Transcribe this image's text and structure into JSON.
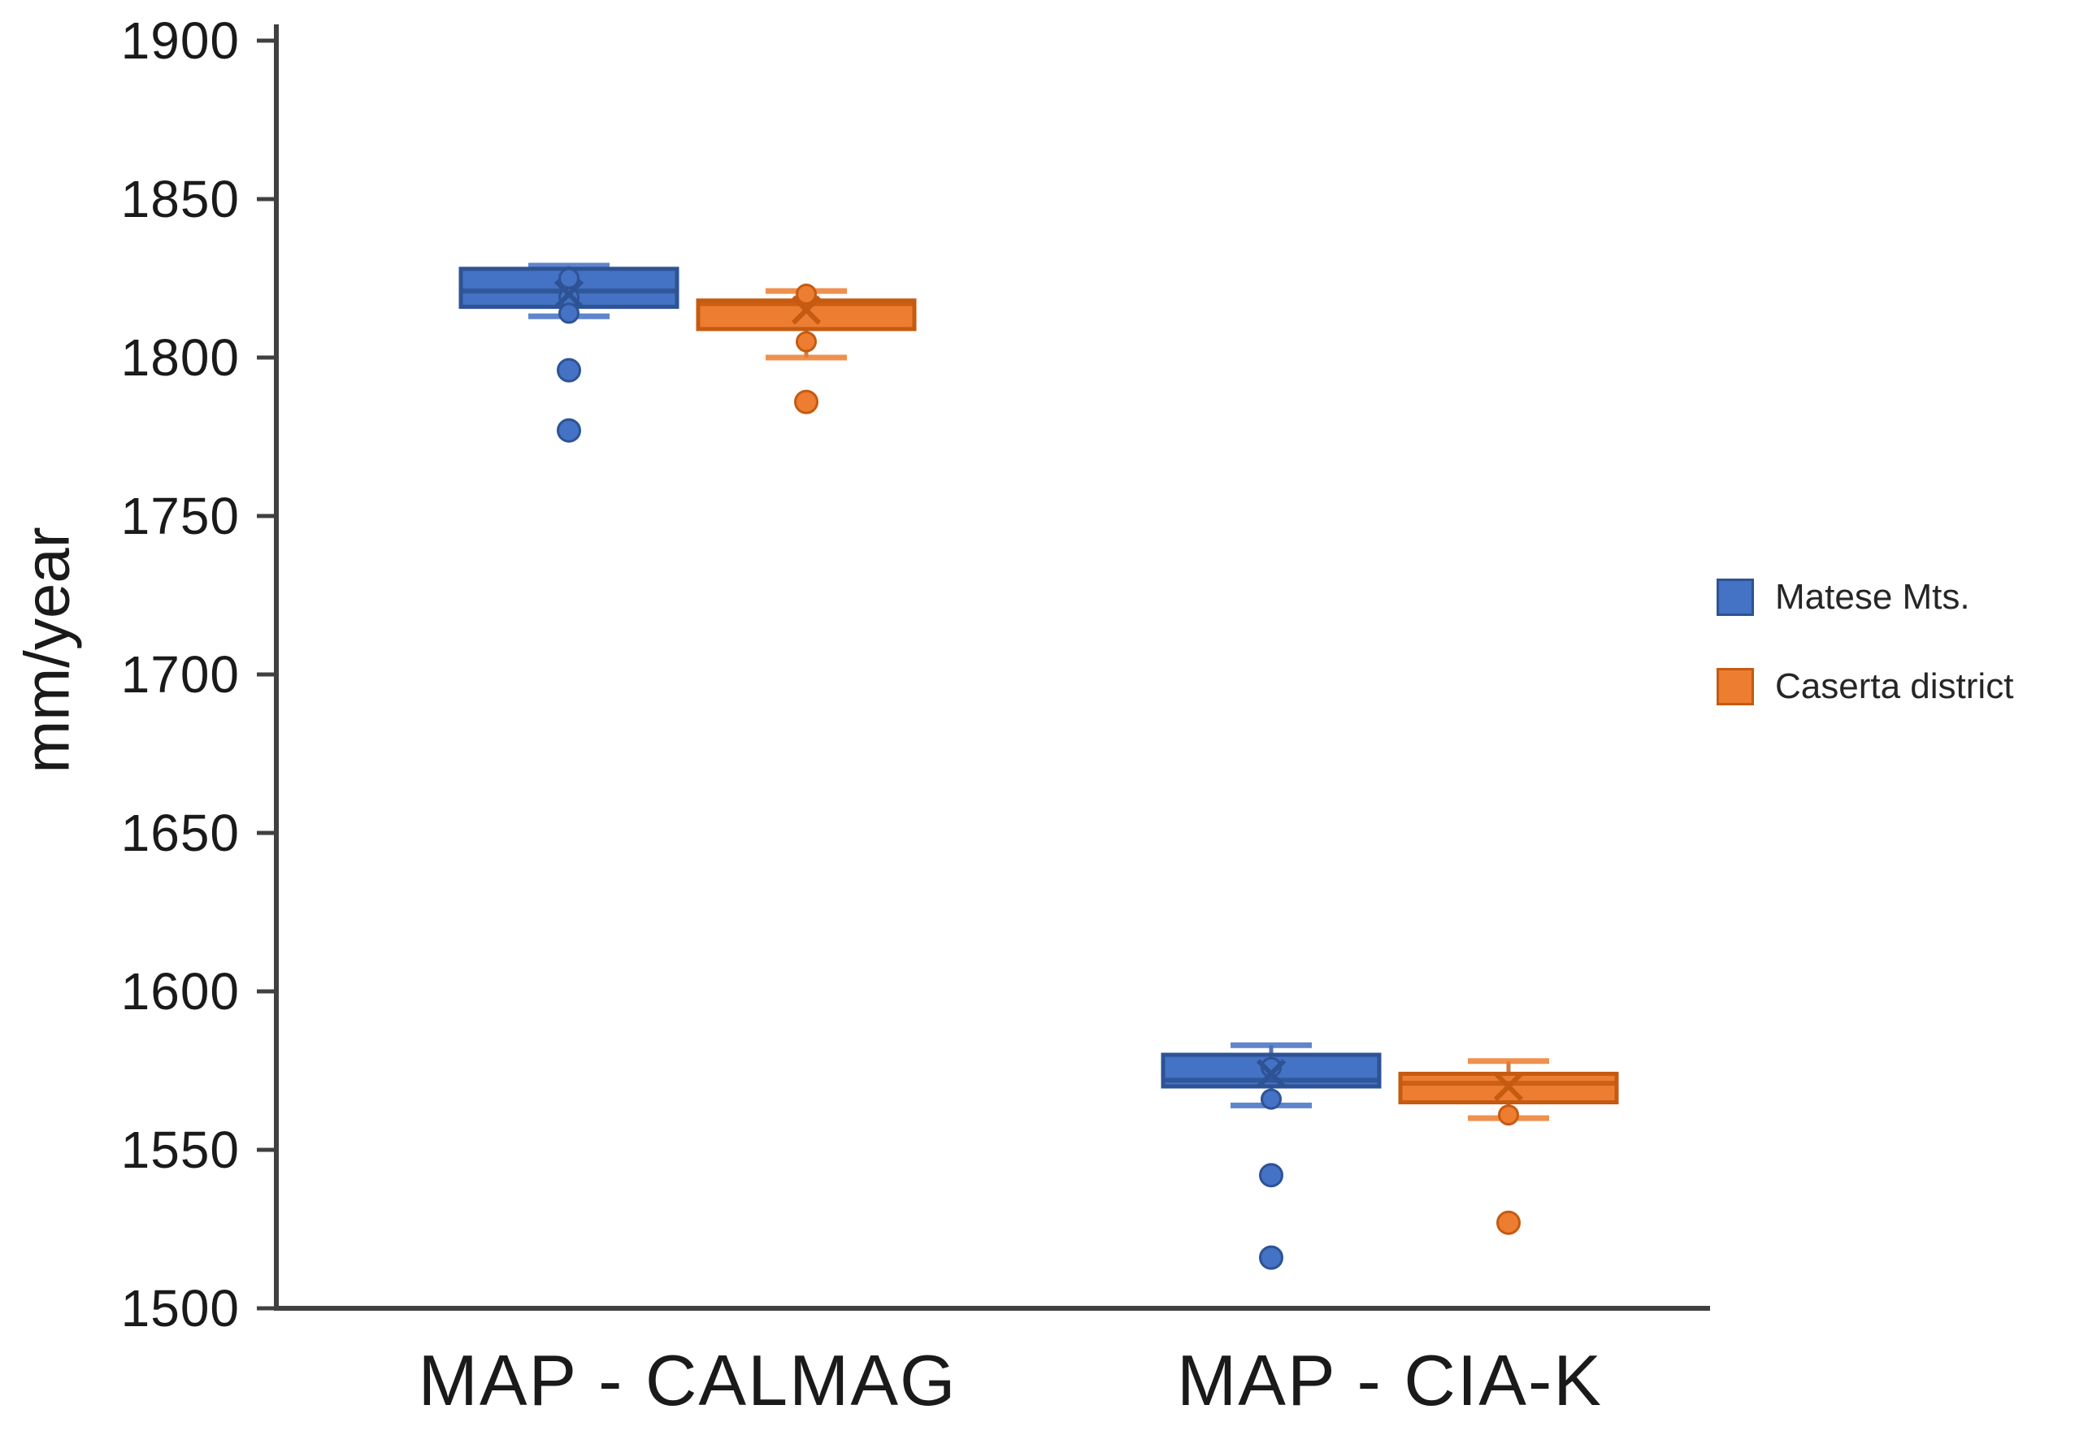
{
  "chart_data": {
    "type": "boxplot",
    "title": "",
    "ylabel": "mm/year",
    "xlabel": "",
    "ylim": [
      1500,
      1900
    ],
    "yticks": [
      1500,
      1550,
      1600,
      1650,
      1700,
      1750,
      1800,
      1850,
      1900
    ],
    "grid": false,
    "legend_position": "right",
    "categories": [
      "MAP - CALMAG",
      "MAP - CIA-K"
    ],
    "axis_color": "#404040",
    "series": [
      {
        "name": "Matese Mts.",
        "color": "#4472C4",
        "border": "#2E5395",
        "boxes": [
          {
            "category": "MAP - CALMAG",
            "whisker_low": 1813,
            "q1": 1816,
            "median": 1821,
            "q3": 1828,
            "whisker_high": 1829,
            "mean": 1820,
            "inner_points": [
              1825,
              1819,
              1814
            ],
            "outliers": [
              1796,
              1777
            ]
          },
          {
            "category": "MAP - CIA-K",
            "whisker_low": 1564,
            "q1": 1570,
            "median": 1572,
            "q3": 1580,
            "whisker_high": 1583,
            "mean": 1574,
            "inner_points": [
              1576,
              1566
            ],
            "outliers": [
              1542,
              1516
            ]
          }
        ]
      },
      {
        "name": "Caserta district",
        "color": "#ED7D31",
        "border": "#C55A11",
        "boxes": [
          {
            "category": "MAP - CALMAG",
            "whisker_low": 1800,
            "q1": 1809,
            "median": 1817,
            "q3": 1818,
            "whisker_high": 1821,
            "mean": 1815,
            "inner_points": [
              1820,
              1805
            ],
            "outliers": [
              1786
            ]
          },
          {
            "category": "MAP - CIA-K",
            "whisker_low": 1560,
            "q1": 1565,
            "median": 1571,
            "q3": 1574,
            "whisker_high": 1578,
            "mean": 1570,
            "inner_points": [
              1561
            ],
            "outliers": [
              1527
            ]
          }
        ]
      }
    ]
  }
}
